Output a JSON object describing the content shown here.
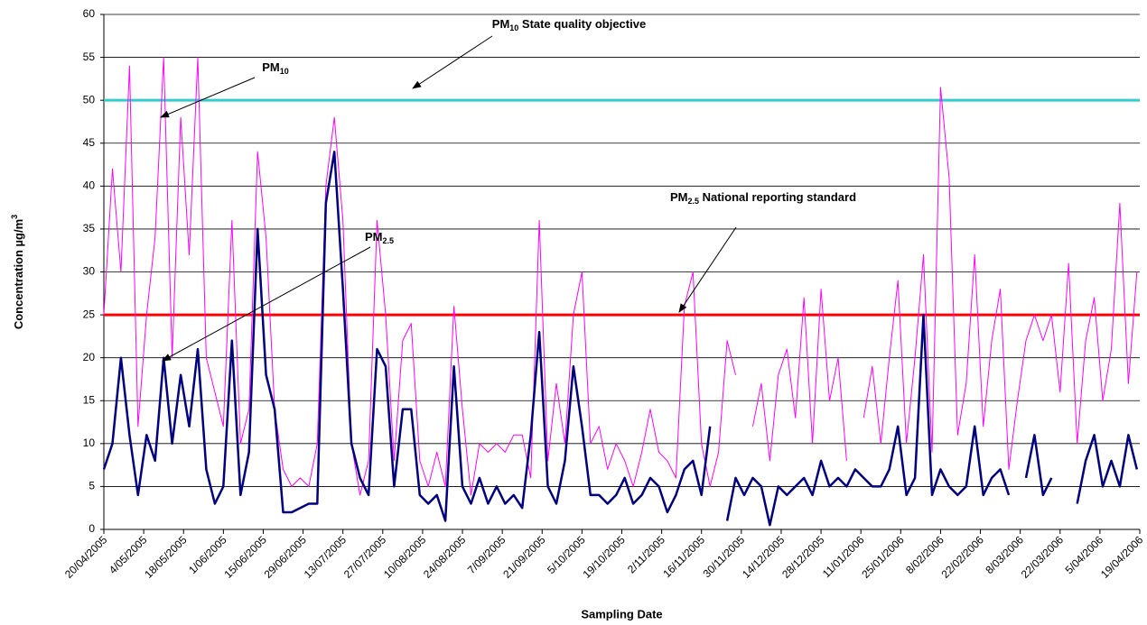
{
  "chart_data": {
    "type": "line",
    "x_label": "Sampling Date",
    "y_label": [
      "Concentration µg/m",
      "3"
    ],
    "xlim": [
      "20/04/2005",
      "19/04/2006"
    ],
    "xticks": [
      "20/04/2005",
      "4/05/2005",
      "18/05/2005",
      "1/06/2005",
      "15/06/2005",
      "29/06/2005",
      "13/07/2005",
      "27/07/2005",
      "10/08/2005",
      "24/08/2005",
      "7/09/2005",
      "21/09/2005",
      "5/10/2005",
      "19/10/2005",
      "2/11/2005",
      "16/11/2005",
      "30/11/2005",
      "14/12/2005",
      "28/12/2005",
      "11/01/2006",
      "25/01/2006",
      "8/02/2006",
      "22/02/2006",
      "8/03/2006",
      "22/03/2006",
      "5/04/2006",
      "19/04/2006"
    ],
    "ylim": [
      0,
      60
    ],
    "yticks": [
      0,
      5,
      10,
      15,
      20,
      25,
      30,
      35,
      40,
      45,
      50,
      55,
      60
    ],
    "grid": true,
    "x": [
      "20/04/2005",
      "23/04/2005",
      "26/04/2005",
      "29/04/2005",
      "2/05/2005",
      "5/05/2005",
      "8/05/2005",
      "11/05/2005",
      "14/05/2005",
      "17/05/2005",
      "20/05/2005",
      "23/05/2005",
      "26/05/2005",
      "29/05/2005",
      "1/06/2005",
      "4/06/2005",
      "7/06/2005",
      "10/06/2005",
      "13/06/2005",
      "16/06/2005",
      "19/06/2005",
      "22/06/2005",
      "25/06/2005",
      "28/06/2005",
      "1/07/2005",
      "4/07/2005",
      "7/07/2005",
      "10/07/2005",
      "13/07/2005",
      "16/07/2005",
      "19/07/2005",
      "22/07/2005",
      "25/07/2005",
      "28/07/2005",
      "31/07/2005",
      "3/08/2005",
      "6/08/2005",
      "9/08/2005",
      "12/08/2005",
      "15/08/2005",
      "18/08/2005",
      "21/08/2005",
      "24/08/2005",
      "27/08/2005",
      "30/08/2005",
      "2/09/2005",
      "5/09/2005",
      "8/09/2005",
      "11/09/2005",
      "14/09/2005",
      "17/09/2005",
      "20/09/2005",
      "23/09/2005",
      "26/09/2005",
      "29/09/2005",
      "2/10/2005",
      "5/10/2005",
      "8/10/2005",
      "11/10/2005",
      "14/10/2005",
      "17/10/2005",
      "20/10/2005",
      "23/10/2005",
      "26/10/2005",
      "29/10/2005",
      "1/11/2005",
      "4/11/2005",
      "7/11/2005",
      "10/11/2005",
      "13/11/2005",
      "16/11/2005",
      "19/11/2005",
      "22/11/2005",
      "25/11/2005",
      "28/11/2005",
      "1/12/2005",
      "4/12/2005",
      "7/12/2005",
      "10/12/2005",
      "13/12/2005",
      "16/12/2005",
      "19/12/2005",
      "22/12/2005",
      "25/12/2005",
      "28/12/2005",
      "31/12/2005",
      "3/01/2006",
      "6/01/2006",
      "9/01/2006",
      "12/01/2006",
      "15/01/2006",
      "18/01/2006",
      "21/01/2006",
      "24/01/2006",
      "27/01/2006",
      "30/01/2006",
      "2/02/2006",
      "5/02/2006",
      "8/02/2006",
      "11/02/2006",
      "14/02/2006",
      "17/02/2006",
      "20/02/2006",
      "23/02/2006",
      "26/02/2006",
      "1/03/2006",
      "4/03/2006",
      "7/03/2006",
      "10/03/2006",
      "13/03/2006",
      "16/03/2006",
      "19/03/2006",
      "22/03/2006",
      "25/03/2006",
      "28/03/2006",
      "31/03/2006",
      "3/04/2006",
      "6/04/2006",
      "9/04/2006",
      "12/04/2006",
      "15/04/2006",
      "18/04/2006"
    ],
    "series": [
      {
        "color": "#ff00ff",
        "width": 1,
        "values": [
          25,
          42,
          30,
          54,
          12,
          25,
          34,
          55,
          20,
          48,
          32,
          55,
          20,
          16,
          12,
          36,
          10,
          14,
          44,
          34,
          14,
          7,
          5,
          6,
          5,
          10,
          40,
          48,
          36,
          10,
          4,
          8,
          36,
          25,
          8,
          22,
          24,
          8,
          5,
          9,
          5,
          26,
          14,
          4,
          10,
          9,
          10,
          9,
          11,
          11,
          6,
          36,
          8,
          17,
          10,
          25,
          30,
          10,
          12,
          7,
          10,
          8,
          5,
          9,
          14,
          9,
          8,
          6,
          26,
          30,
          10,
          5,
          9,
          22,
          18,
          null,
          12,
          17,
          8,
          18,
          21,
          13,
          27,
          10,
          28,
          15,
          20,
          8,
          null,
          13,
          19,
          10,
          20,
          29,
          10,
          20,
          32,
          9,
          51.5,
          41,
          11,
          17,
          32,
          12,
          22,
          28,
          7,
          15,
          22,
          25,
          22,
          25,
          16,
          31,
          10,
          22,
          27,
          15,
          21,
          38,
          17,
          30
        ]
      },
      {
        "color": "#000080",
        "width": 2.5,
        "values": [
          7,
          10,
          20,
          11,
          4,
          11,
          8,
          20,
          10,
          18,
          12,
          21,
          7,
          3,
          5,
          22,
          4,
          9,
          35,
          18,
          14,
          2,
          2,
          2.5,
          3,
          3,
          38,
          44,
          28,
          10,
          6,
          4,
          21,
          19,
          5,
          14,
          14,
          4,
          3,
          4,
          1,
          19,
          5,
          3,
          6,
          3,
          5,
          3,
          4,
          2.5,
          11,
          23,
          5,
          3,
          8,
          19,
          12,
          4,
          4,
          3,
          4,
          6,
          3,
          4,
          6,
          5,
          2,
          4,
          7,
          8,
          4,
          12,
          null,
          1,
          6,
          4,
          6,
          5,
          0.5,
          5,
          4,
          5,
          6,
          4,
          8,
          5,
          6,
          5,
          7,
          6,
          5,
          5,
          7,
          12,
          4,
          6,
          25,
          4,
          7,
          5,
          4,
          5,
          12,
          4,
          6,
          7,
          4,
          null,
          6,
          11,
          4,
          6,
          null,
          null,
          3,
          8,
          11,
          5,
          8,
          5,
          11,
          7
        ]
      }
    ],
    "reference_lines": [
      {
        "value": 50,
        "color": "#33cccc"
      },
      {
        "value": 25,
        "color": "#ff0000"
      }
    ],
    "annotations": [
      [
        "PM",
        "10",
        " State quality objective"
      ],
      [
        "PM",
        "2.5",
        " National reporting standard"
      ],
      [
        "PM",
        "10",
        ""
      ],
      [
        "PM",
        "2.5",
        ""
      ]
    ]
  }
}
